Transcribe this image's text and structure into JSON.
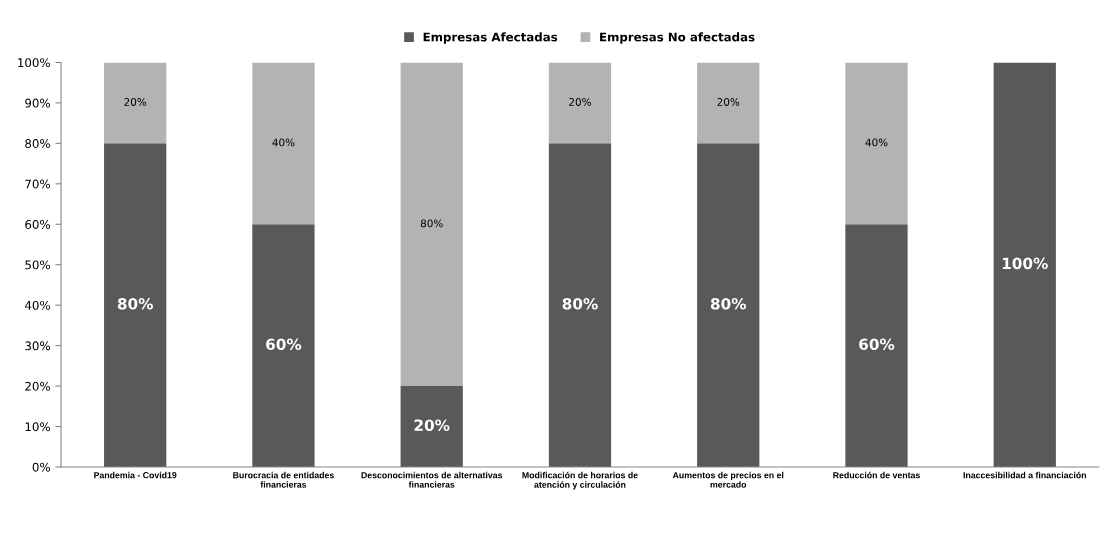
{
  "chart_data": {
    "type": "bar",
    "stacked": true,
    "categories": [
      "Pandemia - Covid19",
      "Burocracia de entidades\nfinancieras",
      "Desconocimientos de alternativas\nfinancieras",
      "Modificación de horarios de\natención y circulación",
      "Aumentos de precios en el\nmercado",
      "Reducción de ventas",
      "Inaccesibilidad a financiación"
    ],
    "series": [
      {
        "name": "Empresas Afectadas",
        "color": "#595959",
        "values": [
          80,
          60,
          20,
          80,
          80,
          60,
          100
        ],
        "value_labels": [
          "80%",
          "60%",
          "20%",
          "80%",
          "80%",
          "60%",
          "100%"
        ]
      },
      {
        "name": "Empresas No afectadas",
        "color": "#b3b3b3",
        "values": [
          20,
          40,
          80,
          20,
          20,
          40,
          0
        ],
        "value_labels": [
          "20%",
          "40%",
          "80%",
          "20%",
          "20%",
          "40%",
          null
        ]
      }
    ],
    "ylim": [
      0,
      100
    ],
    "yticks": [
      {
        "value": 0,
        "label": "0%"
      },
      {
        "value": 10,
        "label": "10%"
      },
      {
        "value": 20,
        "label": "20%"
      },
      {
        "value": 30,
        "label": "30%"
      },
      {
        "value": 40,
        "label": "40%"
      },
      {
        "value": 50,
        "label": "50%"
      },
      {
        "value": 60,
        "label": "60%"
      },
      {
        "value": 70,
        "label": "70%"
      },
      {
        "value": 80,
        "label": "80%"
      },
      {
        "value": 90,
        "label": "90%"
      },
      {
        "value": 100,
        "label": "100%"
      }
    ],
    "grid": false,
    "legend": "top"
  }
}
